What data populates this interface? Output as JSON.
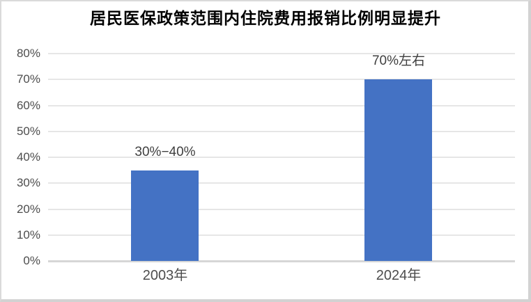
{
  "window": {
    "title": "居民医保政策范围内住院费用报销比例明显提升"
  },
  "chart_data": {
    "type": "bar",
    "title": "居民医保政策范围内住院费用报销比例明显提升",
    "categories": [
      "2003年",
      "2024年"
    ],
    "values": [
      35,
      70
    ],
    "bar_labels": [
      "30%−40%",
      "70%左右"
    ],
    "xlabel": "",
    "ylabel": "",
    "ylim": [
      0,
      80
    ],
    "yticks": [
      0,
      10,
      20,
      30,
      40,
      50,
      60,
      70,
      80
    ],
    "ytick_suffix": "%",
    "grid": true,
    "legend": false
  },
  "colors": {
    "bar": "#4472C4",
    "gridline": "#e6e6e6",
    "axis_line": "#d6d6d6",
    "tick_label": "#4d4d4d",
    "data_label": "#3f3f3f",
    "title": "#000000",
    "frame_border": "#dadada",
    "background": "#ffffff"
  }
}
